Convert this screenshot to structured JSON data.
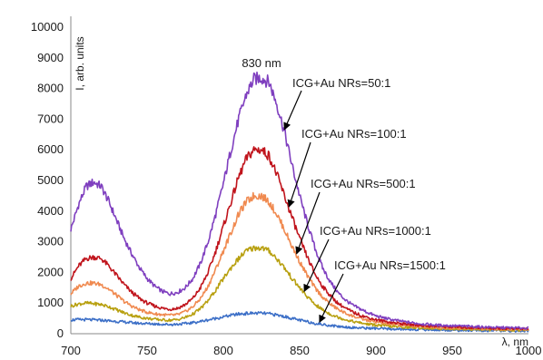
{
  "chart_data": {
    "type": "line",
    "xlabel": "λ, nm",
    "ylabel": "I, arb. units",
    "xlim": [
      700,
      1000
    ],
    "ylim": [
      0,
      10000
    ],
    "x_ticks": [
      "700",
      "750",
      "800",
      "850",
      "900",
      "950",
      "1000"
    ],
    "y_ticks": [
      "0",
      "1000",
      "2000",
      "3000",
      "4000",
      "5000",
      "6000",
      "7000",
      "8000",
      "9000",
      "10000"
    ],
    "grid": false,
    "x": [
      700,
      705,
      710,
      715,
      720,
      725,
      730,
      735,
      740,
      745,
      750,
      755,
      760,
      765,
      770,
      775,
      780,
      785,
      790,
      795,
      800,
      805,
      810,
      815,
      820,
      825,
      830,
      835,
      840,
      845,
      850,
      855,
      860,
      865,
      870,
      875,
      880,
      885,
      890,
      895,
      900,
      905,
      910,
      915,
      920,
      925,
      930,
      935,
      940,
      945,
      950,
      955,
      960,
      965,
      970,
      975,
      980,
      985,
      990,
      995,
      1000
    ],
    "series": [
      {
        "name": "ICG+Au NRs=50:1",
        "color": "#7f3fbf",
        "values": [
          3400,
          4200,
          4800,
          4950,
          4800,
          4300,
          3700,
          3100,
          2600,
          2150,
          1800,
          1550,
          1380,
          1300,
          1350,
          1500,
          1800,
          2300,
          3000,
          3900,
          4900,
          6000,
          7000,
          7800,
          8300,
          8350,
          8200,
          7500,
          6600,
          5500,
          4500,
          3600,
          2800,
          2150,
          1700,
          1350,
          1100,
          920,
          800,
          680,
          580,
          520,
          460,
          420,
          380,
          350,
          320,
          300,
          280,
          270,
          260,
          250,
          240,
          230,
          220,
          210,
          200,
          200,
          190,
          190,
          180
        ]
      },
      {
        "name": "ICG+Au NRs=100:1",
        "color": "#c0141c",
        "values": [
          1800,
          2200,
          2450,
          2500,
          2450,
          2200,
          1900,
          1600,
          1350,
          1150,
          1000,
          900,
          830,
          800,
          830,
          950,
          1150,
          1500,
          2000,
          2700,
          3500,
          4300,
          5100,
          5700,
          6000,
          6000,
          5800,
          5200,
          4500,
          3800,
          3100,
          2500,
          1950,
          1550,
          1250,
          1000,
          830,
          700,
          600,
          520,
          460,
          410,
          370,
          340,
          310,
          290,
          270,
          250,
          240,
          230,
          220,
          210,
          200,
          200,
          190,
          180,
          180,
          170,
          170,
          160,
          160
        ]
      },
      {
        "name": "ICG+Au NRs=500:1",
        "color": "#f08a50",
        "values": [
          1300,
          1550,
          1650,
          1650,
          1600,
          1450,
          1250,
          1050,
          900,
          780,
          700,
          650,
          620,
          600,
          620,
          720,
          880,
          1150,
          1550,
          2100,
          2700,
          3300,
          3900,
          4300,
          4500,
          4500,
          4300,
          3900,
          3400,
          2850,
          2350,
          1900,
          1500,
          1200,
          970,
          800,
          670,
          570,
          490,
          430,
          380,
          340,
          310,
          290,
          270,
          250,
          230,
          220,
          210,
          200,
          190,
          180,
          180,
          170,
          160,
          160,
          150,
          150,
          150,
          140,
          140
        ]
      },
      {
        "name": "ICG+Au NRs=1000:1",
        "color": "#b8a010",
        "values": [
          900,
          970,
          1000,
          980,
          950,
          880,
          780,
          680,
          600,
          540,
          500,
          470,
          450,
          440,
          460,
          530,
          640,
          820,
          1080,
          1420,
          1800,
          2150,
          2450,
          2700,
          2800,
          2800,
          2700,
          2450,
          2150,
          1800,
          1500,
          1200,
          960,
          780,
          640,
          540,
          460,
          400,
          350,
          310,
          280,
          260,
          240,
          220,
          210,
          200,
          190,
          180,
          170,
          160,
          160,
          150,
          150,
          140,
          140,
          130,
          130,
          130,
          120,
          120,
          120
        ]
      },
      {
        "name": "ICG+Au NRs=1500:1",
        "color": "#3c6fc7",
        "values": [
          450,
          460,
          460,
          450,
          440,
          420,
          400,
          380,
          360,
          340,
          330,
          320,
          310,
          300,
          310,
          330,
          360,
          400,
          450,
          500,
          550,
          600,
          640,
          660,
          670,
          670,
          650,
          610,
          560,
          500,
          440,
          390,
          340,
          300,
          270,
          240,
          220,
          200,
          190,
          180,
          170,
          160,
          150,
          150,
          140,
          140,
          130,
          130,
          120,
          120,
          120,
          110,
          110,
          110,
          100,
          100,
          100,
          100,
          90,
          90,
          90
        ]
      }
    ],
    "annotations": [
      {
        "text": "830 nm"
      },
      {
        "text": "ICG+Au NRs=50:1",
        "target_series": 0,
        "arrow_x": 840
      },
      {
        "text": "ICG+Au NRs=100:1",
        "target_series": 1,
        "arrow_x": 843
      },
      {
        "text": "ICG+Au NRs=500:1",
        "target_series": 2,
        "arrow_x": 848
      },
      {
        "text": "ICG+Au NRs=1000:1",
        "target_series": 3,
        "arrow_x": 853
      },
      {
        "text": "ICG+Au NRs=1500:1",
        "target_series": 4,
        "arrow_x": 863
      }
    ]
  }
}
